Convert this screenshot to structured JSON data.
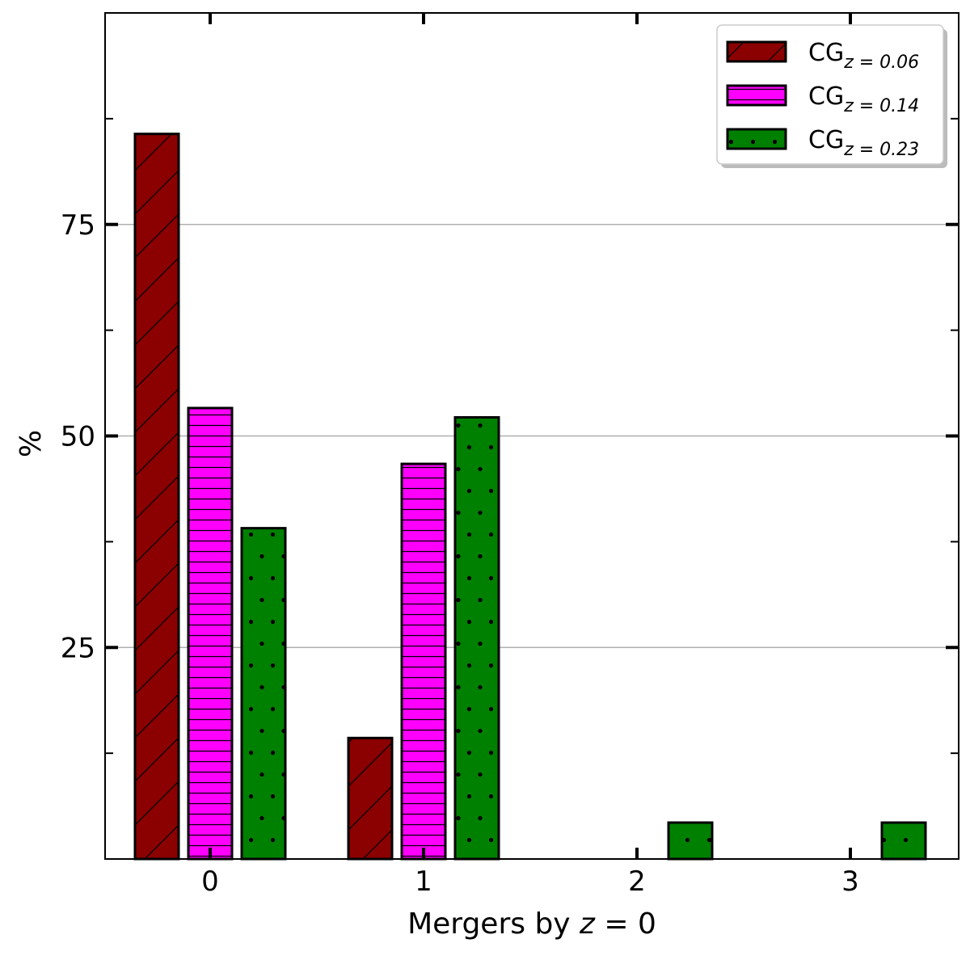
{
  "chart_data": {
    "type": "bar",
    "categories": [
      "0",
      "1",
      "2",
      "3"
    ],
    "series": [
      {
        "name": "CG",
        "subscript": "z = 0.06",
        "color": "#8b0000",
        "hatch": "diagonal",
        "values": [
          85.7,
          14.3,
          0,
          0
        ]
      },
      {
        "name": "CG",
        "subscript": "z = 0.14",
        "color": "#ff00ff",
        "hatch": "horizontal",
        "values": [
          53.3,
          46.7,
          0,
          0
        ]
      },
      {
        "name": "CG",
        "subscript": "z = 0.23",
        "color": "#008000",
        "hatch": "dots",
        "values": [
          39.1,
          52.2,
          4.3,
          4.3
        ]
      }
    ],
    "xlabel": "Mergers by z = 0",
    "xlabel_parts": {
      "text": "Mergers by ",
      "italic": "z",
      "rest": " = 0"
    },
    "ylabel": "%",
    "yticks": [
      25,
      50,
      75
    ],
    "ylim": [
      0,
      100
    ],
    "grid": "horizontal",
    "legend_position": "top-right"
  }
}
